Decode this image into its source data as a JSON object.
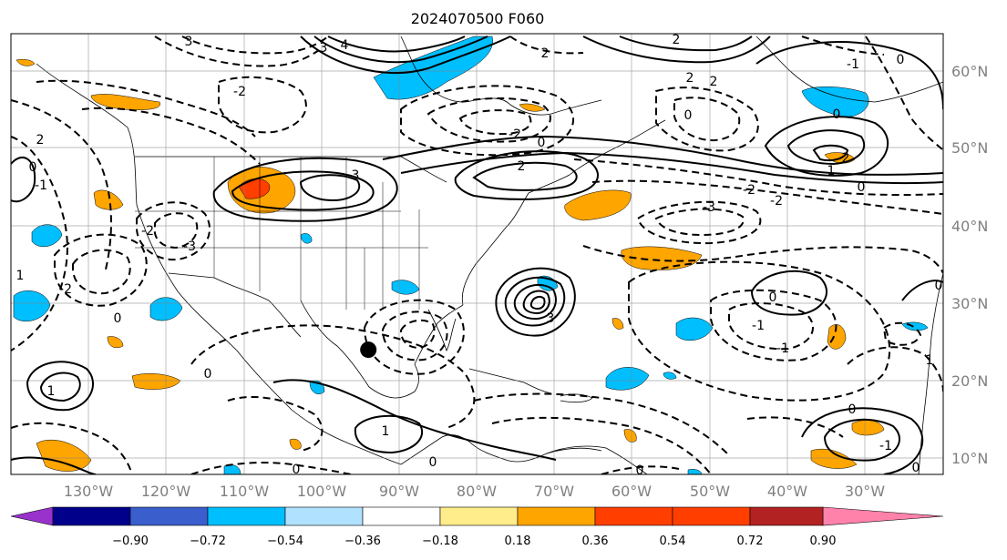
{
  "title": "2024070500 F060",
  "map": {
    "lon_labels": [
      "130°W",
      "120°W",
      "110°W",
      "100°W",
      "90°W",
      "80°W",
      "70°W",
      "60°W",
      "50°W",
      "40°W",
      "30°W"
    ],
    "lat_labels": [
      "60°N",
      "50°N",
      "40°N",
      "30°N",
      "20°N",
      "10°N"
    ],
    "storm_marker": {
      "lon": -94.0,
      "lat": 24.0
    },
    "contour_labels": [
      "3",
      "4",
      "3",
      "3",
      "2",
      "-2",
      "2",
      "0",
      "-3",
      "-2",
      "2",
      "2",
      "-2",
      "2",
      "1",
      "0",
      "3",
      "-2",
      "2",
      "0",
      "-3",
      "-2",
      "0",
      "-2",
      "2",
      "-1",
      "1",
      "0",
      "-1",
      "0",
      "-1",
      "0",
      "1",
      "1",
      "0",
      "0",
      "-1",
      "0",
      "-1",
      "0",
      "0",
      "0",
      "1",
      "0",
      "0"
    ]
  },
  "colorbar": {
    "tick_labels": [
      "−0.90",
      "−0.72",
      "−0.54",
      "−0.36",
      "−0.18",
      "0.18",
      "0.36",
      "0.54",
      "0.72",
      "0.90"
    ],
    "colors": [
      "#9932cc",
      "#00008b",
      "#3a5fcd",
      "#00bfff",
      "#b0e2ff",
      "#ffffff",
      "#ffec8b",
      "#ffa500",
      "#ff3e00",
      "#b22222",
      "#ff82ab"
    ]
  }
}
